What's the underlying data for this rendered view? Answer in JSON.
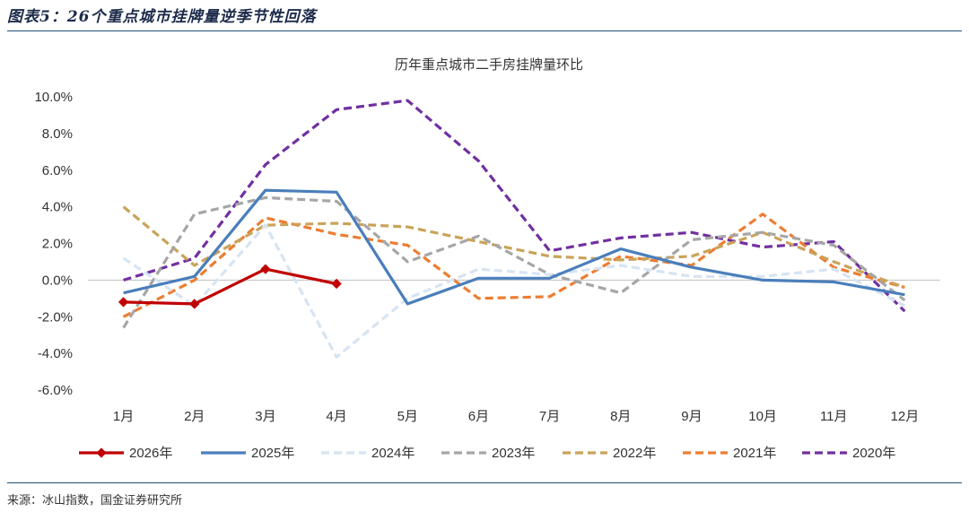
{
  "figure_title": "图表5：26个重点城市挂牌量逆季节性回落",
  "source_note": "来源：冰山指数，国金证券研究所",
  "colors": {
    "2026年": "#c00000",
    "2025年": "#4a7ebb",
    "2024年": "#d6e4f2",
    "2023年": "#a6a6a6",
    "2022年": "#c9a35a",
    "2021年": "#ed7d31",
    "2020年": "#7030a0"
  },
  "chart_data": {
    "type": "line",
    "title": "历年重点城市二手房挂牌量环比",
    "categories": [
      "1月",
      "2月",
      "3月",
      "4月",
      "5月",
      "6月",
      "7月",
      "8月",
      "9月",
      "10月",
      "11月",
      "12月"
    ],
    "y_ticks": [
      "10.0%",
      "8.0%",
      "6.0%",
      "4.0%",
      "2.0%",
      "0.0%",
      "-2.0%",
      "-4.0%",
      "-6.0%"
    ],
    "ylim": [
      -6,
      10
    ],
    "legend_position": "bottom",
    "series": [
      {
        "name": "2026年",
        "style": "solid-marker",
        "values": [
          -1.2,
          -1.3,
          0.6,
          -0.2,
          null,
          null,
          null,
          null,
          null,
          null,
          null,
          null
        ]
      },
      {
        "name": "2025年",
        "style": "solid",
        "values": [
          -0.7,
          0.2,
          4.9,
          4.8,
          -1.3,
          0.1,
          0.1,
          1.7,
          0.7,
          0.0,
          -0.1,
          -0.8
        ]
      },
      {
        "name": "2024年",
        "style": "dashed",
        "values": [
          1.2,
          -1.4,
          3.0,
          -4.2,
          -1.0,
          0.6,
          0.3,
          0.8,
          0.2,
          0.2,
          0.6,
          -1.4
        ]
      },
      {
        "name": "2023年",
        "style": "dashed",
        "values": [
          -2.6,
          3.6,
          4.5,
          4.3,
          1.0,
          2.4,
          0.3,
          -0.7,
          2.2,
          2.6,
          1.9,
          -1.1
        ]
      },
      {
        "name": "2022年",
        "style": "dashed",
        "values": [
          4.0,
          0.8,
          3.0,
          3.1,
          2.9,
          2.1,
          1.3,
          1.1,
          1.3,
          2.6,
          1.0,
          -0.4
        ]
      },
      {
        "name": "2021年",
        "style": "dashed",
        "values": [
          -2.0,
          0.0,
          3.4,
          2.5,
          1.9,
          -1.0,
          -0.9,
          1.3,
          0.8,
          3.6,
          0.7,
          -0.4
        ]
      },
      {
        "name": "2020年",
        "style": "dashed",
        "values": [
          0.0,
          1.2,
          6.3,
          9.3,
          9.8,
          6.5,
          1.6,
          2.3,
          2.6,
          1.8,
          2.1,
          -1.7
        ]
      }
    ]
  }
}
